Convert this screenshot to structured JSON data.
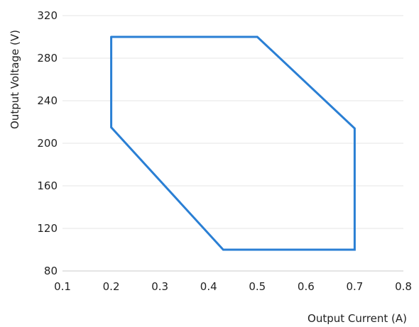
{
  "chart_data": {
    "type": "line",
    "title": "",
    "xlabel": "Output Current (A)",
    "ylabel": "Output Voltage (V)",
    "xlim": [
      0.1,
      0.8
    ],
    "ylim": [
      80,
      320
    ],
    "x_ticks": [
      "0.1",
      "0.2",
      "0.3",
      "0.4",
      "0.5",
      "0.6",
      "0.7",
      "0.8"
    ],
    "y_ticks": [
      "80",
      "120",
      "160",
      "200",
      "240",
      "280",
      "320"
    ],
    "grid": "horizontal",
    "series": [
      {
        "color": "#2a7fd4",
        "x": [
          0.2,
          0.5,
          0.7,
          0.7,
          0.43,
          0.2,
          0.2
        ],
        "y": [
          300,
          300,
          214,
          100,
          100,
          215,
          300
        ]
      }
    ]
  }
}
